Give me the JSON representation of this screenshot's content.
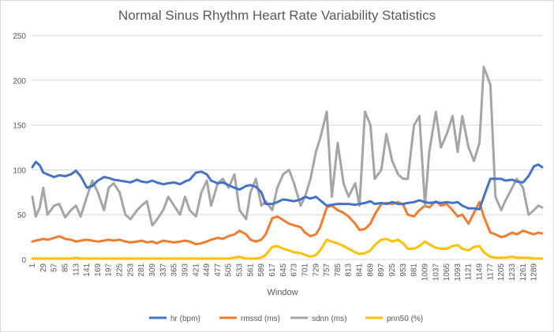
{
  "chart_data": {
    "type": "line",
    "title": "Normal Sinus Rhythm Heart Rate Variability Statistics",
    "xlabel": "Window",
    "ylabel": "",
    "xlim": [
      1,
      1310
    ],
    "ylim": [
      0,
      250
    ],
    "yticks": [
      0,
      50,
      100,
      150,
      200,
      250
    ],
    "xticks": [
      "1",
      "29",
      "57",
      "85",
      "113",
      "141",
      "169",
      "197",
      "225",
      "253",
      "281",
      "309",
      "337",
      "365",
      "393",
      "421",
      "449",
      "477",
      "505",
      "533",
      "561",
      "589",
      "617",
      "645",
      "673",
      "701",
      "729",
      "757",
      "785",
      "813",
      "841",
      "869",
      "897",
      "925",
      "953",
      "981",
      "1009",
      "1037",
      "1065",
      "1093",
      "1121",
      "1149",
      "1177",
      "1205",
      "1233",
      "1261",
      "1289"
    ],
    "grid": "horizontal",
    "legend": "bottom",
    "colors": {
      "hr": "#4472c4",
      "rmssd": "#ed7d31",
      "sdnn": "#a5a5a5",
      "pnn50": "#ffc000"
    },
    "series": [
      {
        "name": "hr (bpm)",
        "key": "hr",
        "x": [
          1,
          10,
          20,
          29,
          40,
          57,
          70,
          85,
          100,
          113,
          125,
          141,
          155,
          169,
          185,
          197,
          210,
          225,
          240,
          253,
          270,
          281,
          295,
          309,
          320,
          337,
          350,
          365,
          380,
          393,
          405,
          421,
          435,
          449,
          460,
          477,
          490,
          505,
          520,
          533,
          550,
          561,
          575,
          589,
          600,
          617,
          630,
          645,
          660,
          673,
          690,
          701,
          715,
          729,
          740,
          757,
          770,
          785,
          800,
          813,
          830,
          841,
          855,
          869,
          880,
          897,
          910,
          925,
          940,
          953,
          965,
          981,
          995,
          1009,
          1020,
          1037,
          1050,
          1065,
          1080,
          1093,
          1105,
          1121,
          1135,
          1149,
          1160,
          1177,
          1190,
          1205,
          1215,
          1233,
          1245,
          1261,
          1275,
          1289,
          1300,
          1310
        ],
        "y": [
          103,
          109,
          105,
          97,
          95,
          92,
          94,
          93,
          95,
          99,
          93,
          80,
          82,
          88,
          92,
          91,
          89,
          88,
          87,
          86,
          89,
          87,
          86,
          88,
          86,
          84,
          85,
          86,
          84,
          87,
          89,
          97,
          98,
          95,
          88,
          85,
          86,
          83,
          80,
          78,
          82,
          83,
          81,
          75,
          62,
          62,
          64,
          67,
          66,
          65,
          67,
          70,
          68,
          70,
          66,
          60,
          61,
          62,
          62,
          62,
          61,
          62,
          63,
          65,
          62,
          63,
          62,
          64,
          62,
          62,
          63,
          64,
          66,
          64,
          63,
          64,
          63,
          64,
          63,
          64,
          60,
          57,
          57,
          56,
          70,
          90,
          90,
          90,
          88,
          89,
          87,
          86,
          93,
          104,
          106,
          103
        ]
      },
      {
        "name": "rmssd (ms)",
        "key": "rmssd",
        "x": [
          1,
          10,
          20,
          29,
          40,
          57,
          70,
          85,
          100,
          113,
          125,
          141,
          155,
          169,
          185,
          197,
          210,
          225,
          240,
          253,
          270,
          281,
          295,
          309,
          320,
          337,
          350,
          365,
          380,
          393,
          405,
          421,
          435,
          449,
          460,
          477,
          490,
          505,
          520,
          533,
          550,
          561,
          575,
          589,
          600,
          617,
          630,
          645,
          660,
          673,
          690,
          701,
          715,
          729,
          740,
          757,
          770,
          785,
          800,
          813,
          830,
          841,
          855,
          869,
          880,
          897,
          910,
          925,
          940,
          953,
          965,
          981,
          995,
          1009,
          1020,
          1037,
          1050,
          1065,
          1080,
          1093,
          1105,
          1121,
          1135,
          1149,
          1160,
          1177,
          1190,
          1205,
          1215,
          1233,
          1245,
          1261,
          1275,
          1289,
          1300,
          1310
        ],
        "y": [
          20,
          21,
          22,
          23,
          22,
          24,
          26,
          23,
          22,
          20,
          21,
          22,
          21,
          20,
          21,
          22,
          21,
          22,
          20,
          19,
          20,
          21,
          19,
          20,
          18,
          21,
          20,
          19,
          20,
          21,
          20,
          17,
          18,
          20,
          22,
          24,
          23,
          26,
          28,
          32,
          28,
          22,
          20,
          22,
          28,
          46,
          48,
          44,
          40,
          38,
          36,
          30,
          26,
          28,
          36,
          58,
          60,
          55,
          52,
          48,
          40,
          33,
          34,
          40,
          50,
          62,
          63,
          62,
          64,
          61,
          50,
          48,
          55,
          60,
          58,
          65,
          60,
          62,
          55,
          48,
          50,
          40,
          52,
          64,
          48,
          30,
          28,
          25,
          26,
          30,
          28,
          32,
          30,
          28,
          30,
          29
        ]
      },
      {
        "name": "sdnn (ms)",
        "key": "sdnn",
        "x": [
          1,
          10,
          20,
          29,
          40,
          57,
          70,
          85,
          100,
          113,
          125,
          141,
          155,
          169,
          185,
          197,
          210,
          225,
          240,
          253,
          270,
          281,
          295,
          309,
          320,
          337,
          350,
          365,
          380,
          393,
          405,
          421,
          435,
          449,
          460,
          477,
          490,
          505,
          520,
          533,
          550,
          561,
          575,
          589,
          600,
          617,
          630,
          645,
          660,
          673,
          690,
          701,
          715,
          729,
          740,
          757,
          770,
          785,
          800,
          813,
          830,
          841,
          855,
          869,
          880,
          897,
          910,
          925,
          940,
          953,
          965,
          981,
          995,
          1009,
          1020,
          1037,
          1050,
          1065,
          1080,
          1093,
          1105,
          1121,
          1135,
          1149,
          1160,
          1177,
          1190,
          1205,
          1215,
          1233,
          1245,
          1261,
          1275,
          1289,
          1300,
          1310
        ],
        "y": [
          70,
          48,
          58,
          80,
          50,
          60,
          62,
          47,
          55,
          60,
          48,
          70,
          88,
          75,
          55,
          80,
          85,
          75,
          50,
          45,
          55,
          60,
          65,
          38,
          44,
          55,
          70,
          60,
          50,
          70,
          55,
          48,
          75,
          88,
          60,
          85,
          90,
          80,
          95,
          55,
          45,
          75,
          90,
          60,
          65,
          55,
          80,
          95,
          100,
          85,
          60,
          70,
          90,
          120,
          135,
          165,
          70,
          130,
          85,
          70,
          85,
          60,
          165,
          150,
          90,
          100,
          140,
          110,
          95,
          90,
          90,
          150,
          160,
          60,
          120,
          165,
          125,
          140,
          160,
          120,
          160,
          125,
          110,
          130,
          215,
          195,
          70,
          55,
          65,
          80,
          90,
          80,
          50,
          55,
          60,
          58
        ]
      },
      {
        "name": "pnn50 (%)",
        "key": "pnn50",
        "x": [
          1,
          10,
          20,
          29,
          40,
          57,
          70,
          85,
          100,
          113,
          125,
          141,
          155,
          169,
          185,
          197,
          210,
          225,
          240,
          253,
          270,
          281,
          295,
          309,
          320,
          337,
          350,
          365,
          380,
          393,
          405,
          421,
          435,
          449,
          460,
          477,
          490,
          505,
          520,
          533,
          550,
          561,
          575,
          589,
          600,
          617,
          630,
          645,
          660,
          673,
          690,
          701,
          715,
          729,
          740,
          757,
          770,
          785,
          800,
          813,
          830,
          841,
          855,
          869,
          880,
          897,
          910,
          925,
          940,
          953,
          965,
          981,
          995,
          1009,
          1020,
          1037,
          1050,
          1065,
          1080,
          1093,
          1105,
          1121,
          1135,
          1149,
          1160,
          1177,
          1190,
          1205,
          1215,
          1233,
          1245,
          1261,
          1275,
          1289,
          1300,
          1310
        ],
        "y": [
          1,
          1,
          1,
          1,
          1,
          1,
          1,
          1,
          1,
          2,
          1,
          1,
          1,
          1,
          1,
          1,
          1,
          1,
          1,
          1,
          1,
          1,
          1,
          1,
          1,
          1,
          1,
          1,
          1,
          1,
          1,
          1,
          1,
          1,
          1,
          1,
          1,
          1,
          2,
          3,
          1,
          1,
          1,
          2,
          5,
          14,
          15,
          12,
          10,
          8,
          7,
          5,
          3,
          5,
          10,
          22,
          20,
          18,
          15,
          12,
          8,
          6,
          7,
          10,
          16,
          22,
          23,
          20,
          22,
          18,
          12,
          12,
          15,
          20,
          17,
          13,
          12,
          12,
          15,
          16,
          12,
          10,
          14,
          15,
          8,
          3,
          2,
          2,
          2,
          3,
          2,
          2,
          2,
          1,
          1,
          1
        ]
      }
    ]
  }
}
